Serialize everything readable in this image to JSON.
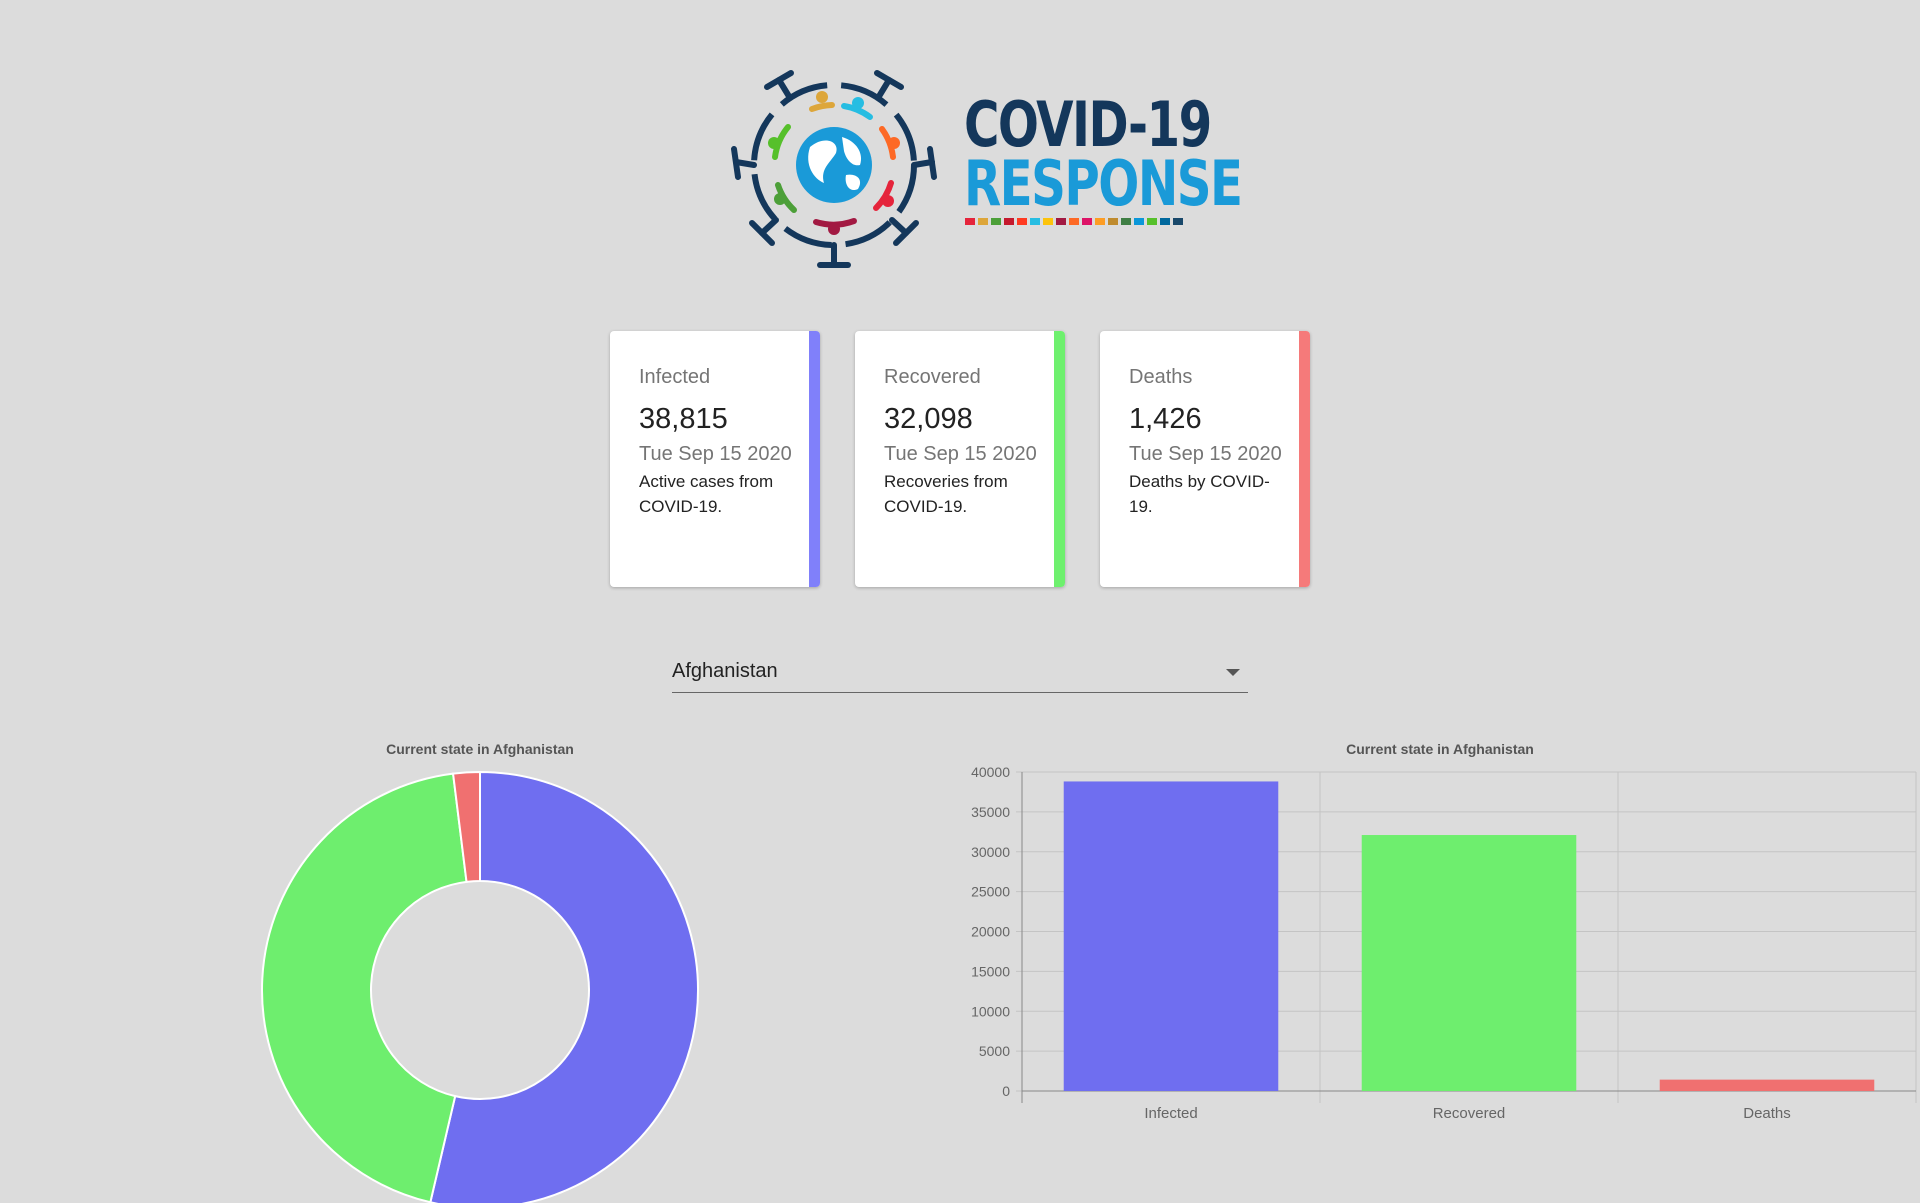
{
  "logo": {
    "line1": "COVID-19",
    "line2": "RESPONSE",
    "sdg_colors": [
      "#e5243b",
      "#dda63a",
      "#4c9f38",
      "#c5192d",
      "#ff3a21",
      "#26bde2",
      "#fcc30b",
      "#a21942",
      "#fd6925",
      "#dd1367",
      "#fd9d24",
      "#bf8b2e",
      "#3f7e44",
      "#0a97d9",
      "#56c02b",
      "#00689d",
      "#19486a"
    ]
  },
  "cards": [
    {
      "label": "Infected",
      "value": "38,815",
      "date": "Tue Sep 15 2020",
      "description": "Active cases from COVID-19.",
      "color": "#8080fa"
    },
    {
      "label": "Recovered",
      "value": "32,098",
      "date": "Tue Sep 15 2020",
      "description": "Recoveries from COVID-19.",
      "color": "#6ef06e"
    },
    {
      "label": "Deaths",
      "value": "1,426",
      "date": "Tue Sep 15 2020",
      "description": "Deaths by COVID-19.",
      "color": "#f57a7a"
    }
  ],
  "country_select": {
    "value": "Afghanistan"
  },
  "chart_data": [
    {
      "type": "pie",
      "title": "Current state in Afghanistan",
      "categories": [
        "Infected",
        "Recovered",
        "Deaths"
      ],
      "values": [
        38815,
        32098,
        1426
      ],
      "colors": [
        "#6f6ef0",
        "#6eee6e",
        "#f07070"
      ],
      "donut": true
    },
    {
      "type": "bar",
      "title": "Current state in Afghanistan",
      "categories": [
        "Infected",
        "Recovered",
        "Deaths"
      ],
      "values": [
        38815,
        32098,
        1426
      ],
      "colors": [
        "#6f6ef0",
        "#6eee6e",
        "#f07070"
      ],
      "ylim": [
        0,
        40000
      ],
      "yticks": [
        0,
        5000,
        10000,
        15000,
        20000,
        25000,
        30000,
        35000,
        40000
      ],
      "grid": true
    }
  ]
}
